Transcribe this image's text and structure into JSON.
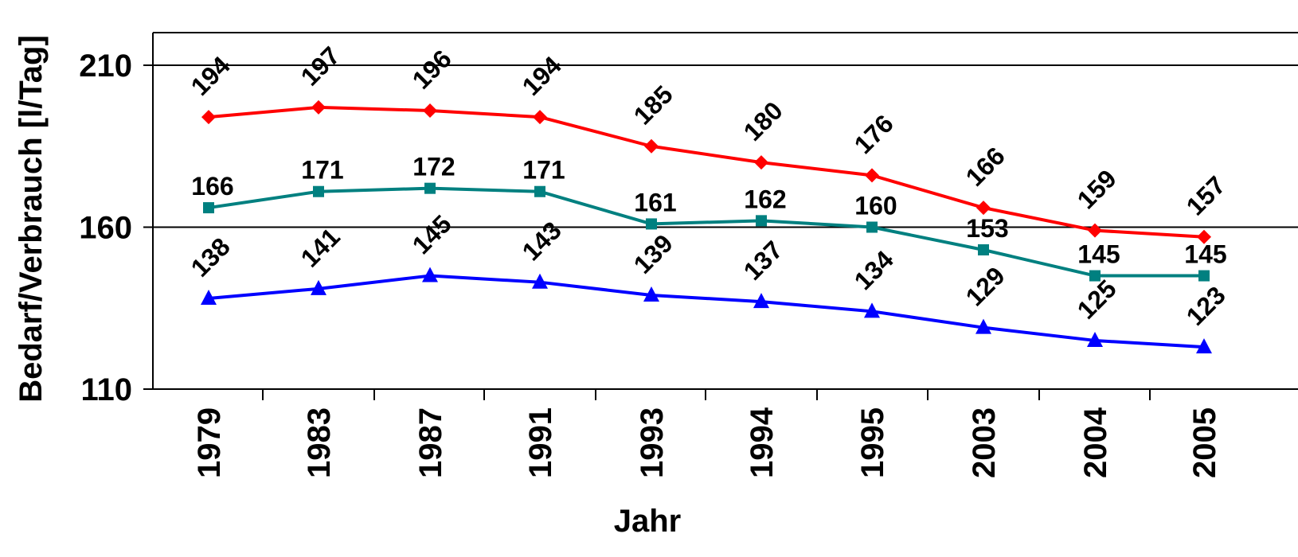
{
  "chart_data": {
    "type": "line",
    "title": "",
    "xlabel": "Jahr",
    "ylabel": "Bedarf/Verbrauch [l/Tag]",
    "categories": [
      "1979",
      "1983",
      "1987",
      "1991",
      "1993",
      "1994",
      "1995",
      "2003",
      "2004",
      "2005"
    ],
    "ylim": [
      110,
      220
    ],
    "yticks": [
      110,
      160,
      210
    ],
    "gridlines_y": [
      160,
      210
    ],
    "legend": "none",
    "series": [
      {
        "color": "#ff0000",
        "marker": "diamond",
        "values": [
          194,
          197,
          196,
          194,
          185,
          180,
          176,
          166,
          159,
          157
        ],
        "label_style": "rotated"
      },
      {
        "color": "#008080",
        "marker": "square",
        "values": [
          166,
          171,
          172,
          171,
          161,
          162,
          160,
          153,
          145,
          145
        ],
        "label_style": "horizontal"
      },
      {
        "color": "#0000ff",
        "marker": "triangle",
        "values": [
          138,
          141,
          145,
          143,
          139,
          137,
          134,
          129,
          125,
          123
        ],
        "label_style": "rotated"
      }
    ]
  }
}
